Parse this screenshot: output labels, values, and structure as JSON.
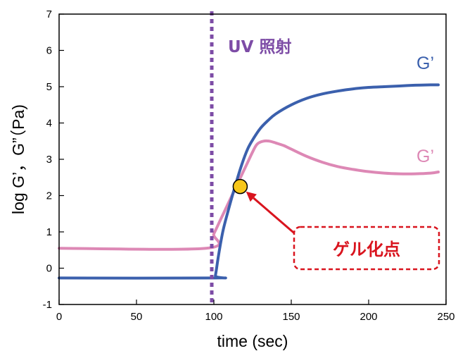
{
  "chart_data": {
    "type": "line",
    "xlabel": "time (sec)",
    "ylabel": "log G’，G”（Pa)",
    "xlim": [
      0,
      250
    ],
    "ylim": [
      -1,
      7
    ],
    "xticks": [
      0,
      50,
      100,
      150,
      200,
      250
    ],
    "yticks": [
      -1,
      0,
      1,
      2,
      3,
      4,
      5,
      6,
      7
    ],
    "grid": false,
    "series": [
      {
        "name": "G’",
        "color": "#3b60ad",
        "x": [
          0,
          100,
          101,
          103,
          106,
          110,
          114,
          118,
          122,
          126,
          130,
          135,
          140,
          150,
          160,
          170,
          180,
          190,
          200,
          210,
          220,
          230,
          240,
          245
        ],
        "y": [
          -0.27,
          -0.27,
          -0.2,
          0.35,
          1.05,
          1.7,
          2.3,
          2.85,
          3.3,
          3.6,
          3.85,
          4.07,
          4.25,
          4.5,
          4.68,
          4.8,
          4.88,
          4.94,
          4.98,
          5.0,
          5.02,
          5.04,
          5.05,
          5.05
        ]
      },
      {
        "name": "G’",
        "color": "#dd88b5",
        "x": [
          0,
          95,
          100,
          105,
          110,
          115,
          120,
          125,
          128,
          132,
          136,
          140,
          145,
          150,
          160,
          170,
          180,
          190,
          200,
          210,
          220,
          230,
          240,
          245
        ],
        "y": [
          0.55,
          0.55,
          0.95,
          1.4,
          1.85,
          2.3,
          2.75,
          3.2,
          3.42,
          3.5,
          3.5,
          3.45,
          3.38,
          3.28,
          3.08,
          2.92,
          2.8,
          2.72,
          2.66,
          2.62,
          2.6,
          2.6,
          2.62,
          2.65
        ]
      }
    ],
    "uv_line": {
      "x": 100,
      "label": "UV 照射",
      "color": "#7d4ca6"
    },
    "gel_point": {
      "x": 117,
      "y": 2.25,
      "label": "ゲル化点",
      "color": "#d9141e",
      "marker_color": "#f7c719"
    }
  }
}
